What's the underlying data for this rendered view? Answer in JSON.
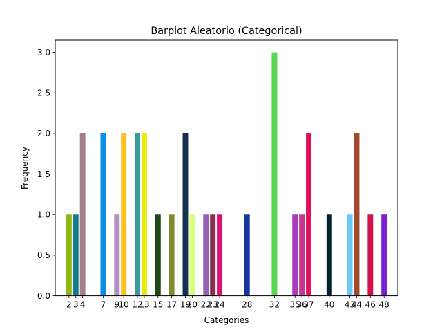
{
  "chart_data": {
    "type": "bar",
    "title": "Barplot Aleatorio (Categorical)",
    "xlabel": "Categories",
    "ylabel": "Frequency",
    "ylim": [
      0,
      3.15
    ],
    "grid": false,
    "legend": "none",
    "yticks": [
      "0.0",
      "0.5",
      "1.0",
      "1.5",
      "2.0",
      "2.5",
      "3.0"
    ],
    "categories": [
      "2",
      "3",
      "4",
      "7",
      "9",
      "10",
      "12",
      "13",
      "15",
      "17",
      "19",
      "20",
      "22",
      "23",
      "24",
      "28",
      "32",
      "35",
      "36",
      "37",
      "40",
      "43",
      "44",
      "46",
      "48"
    ],
    "values": [
      1,
      1,
      2,
      2,
      1,
      2,
      2,
      2,
      1,
      1,
      2,
      1,
      1,
      1,
      1,
      1,
      3,
      1,
      1,
      2,
      1,
      1,
      2,
      1,
      1
    ],
    "colors": [
      "#8fb714",
      "#137c86",
      "#a47f8d",
      "#0a8ee8",
      "#b08fc7",
      "#fbc31b",
      "#3a9a97",
      "#e6ec0c",
      "#1e4a1a",
      "#7f8c2f",
      "#15314f",
      "#d8fe7b",
      "#9362b5",
      "#8f2f4b",
      "#dc0f74",
      "#1536a3",
      "#56d84f",
      "#a63cbc",
      "#c7358c",
      "#e20f5c",
      "#04232d",
      "#6bc9f5",
      "#a04a2f",
      "#d2124f",
      "#7b1fd4"
    ]
  }
}
